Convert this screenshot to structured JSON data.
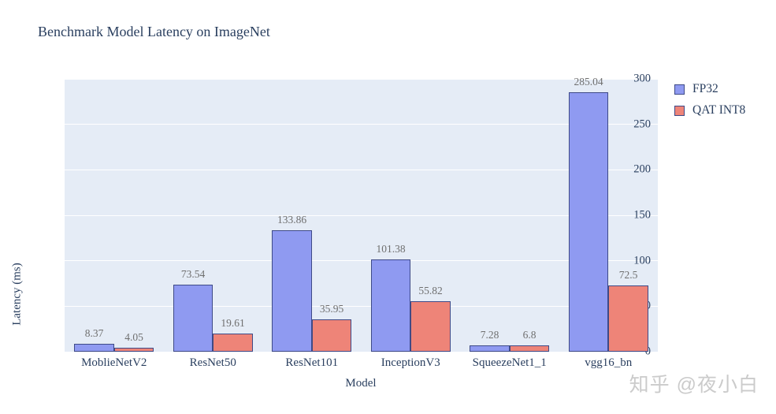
{
  "chart": {
    "title": "Benchmark Model Latency on ImageNet",
    "xlabel": "Model",
    "ylabel": "Latency (ms)"
  },
  "watermark": "知乎 @夜小白",
  "colors": {
    "plot_background": "#e5ecf6",
    "gridline": "#ffffff",
    "bar_border": "#3e4a87",
    "fp32_fill": "#8f9af1",
    "qat_int8_fill": "#ee8478",
    "text": "#2a3f5f",
    "value_label": "#6f6f6f",
    "watermark": "#cbcbcb"
  },
  "chart_data": {
    "type": "bar",
    "title": "Benchmark Model Latency on ImageNet",
    "xlabel": "Model",
    "ylabel": "Latency (ms)",
    "categories": [
      "MoblieNetV2",
      "ResNet50",
      "ResNet101",
      "InceptionV3",
      "SqueezeNet1_1",
      "vgg16_bn"
    ],
    "series": [
      {
        "name": "FP32",
        "color": "#8f9af1",
        "values": [
          8.37,
          73.54,
          133.86,
          101.38,
          7.28,
          285.04
        ]
      },
      {
        "name": "QAT INT8",
        "color": "#ee8478",
        "values": [
          4.05,
          19.61,
          35.95,
          55.82,
          6.8,
          72.5
        ]
      }
    ],
    "ylim": [
      0,
      300
    ],
    "yticks": [
      0,
      50,
      100,
      150,
      200,
      250,
      300
    ],
    "grid": true,
    "legend_position": "right",
    "value_labels_shown": true
  }
}
